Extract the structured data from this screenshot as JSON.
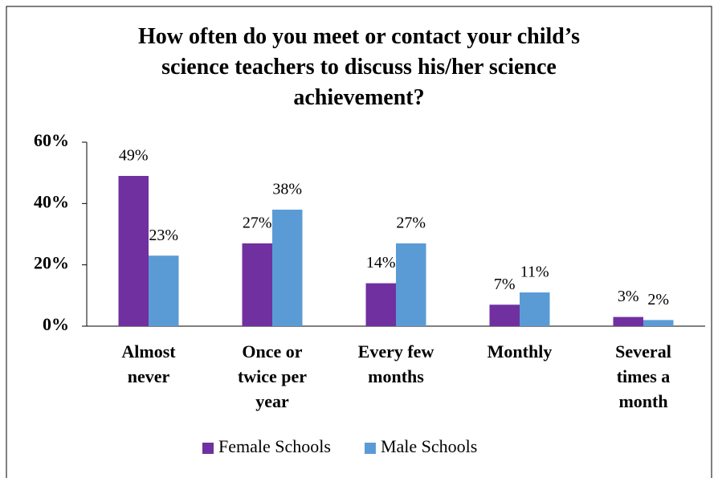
{
  "chart_data": {
    "type": "bar",
    "title": "How often do you meet or contact your child’s science teachers to discuss his/her science achievement?",
    "categories": [
      "Almost never",
      "Once or twice per year",
      "Every few months",
      "Monthly",
      "Several times a month"
    ],
    "series": [
      {
        "name": "Female Schools",
        "color": "#7030a0",
        "values": [
          49,
          27,
          14,
          7,
          3
        ],
        "value_labels": [
          "49%",
          "27%",
          "14%",
          "7%",
          "3%"
        ]
      },
      {
        "name": "Male Schools",
        "color": "#5b9bd5",
        "values": [
          23,
          38,
          27,
          11,
          2
        ],
        "value_labels": [
          "23%",
          "38%",
          "27%",
          "11%",
          "2%"
        ]
      }
    ],
    "ylim": [
      0,
      60
    ],
    "yticks": [
      {
        "value": 0,
        "label": "0%"
      },
      {
        "value": 20,
        "label": "20%"
      },
      {
        "value": 40,
        "label": "40%"
      },
      {
        "value": 60,
        "label": "60%"
      }
    ],
    "grid": false,
    "legend": "bottom"
  }
}
